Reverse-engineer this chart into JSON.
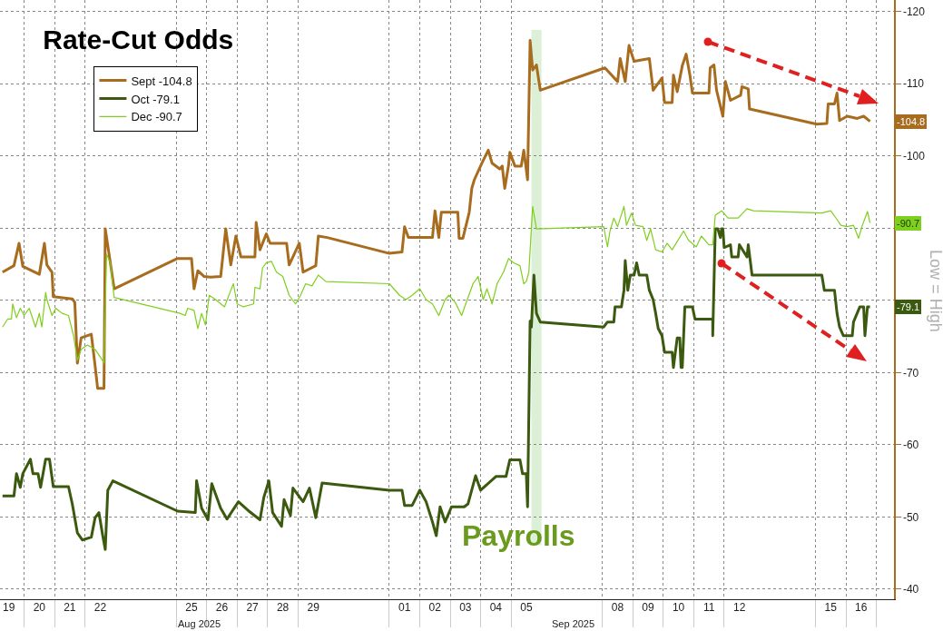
{
  "chart_data": {
    "type": "line",
    "title": "Rate-Cut Odds",
    "xlim": [
      "2025-08-19T05:00",
      "2025-09-17T13:55"
    ],
    "ylim": [
      -38.6,
      -121.6
    ],
    "xticks": [
      {
        "value": "2025-08-19T12:00",
        "label": "19"
      },
      {
        "value": "2025-08-20T00:00",
        "label": null
      },
      {
        "value": "2025-08-20T12:00",
        "label": "20"
      },
      {
        "value": "2025-08-21T00:00",
        "label": null
      },
      {
        "value": "2025-08-21T12:00",
        "label": "21"
      },
      {
        "value": "2025-08-22T00:00",
        "label": null
      },
      {
        "value": "2025-08-22T12:00",
        "label": "22"
      },
      {
        "value": "2025-08-25T00:00",
        "label": null
      },
      {
        "value": "2025-08-25T12:00",
        "label": "25"
      },
      {
        "value": "2025-08-26T00:00",
        "label": null
      },
      {
        "value": "2025-08-26T12:00",
        "label": "26"
      },
      {
        "value": "2025-08-27T00:00",
        "label": null
      },
      {
        "value": "2025-08-27T12:00",
        "label": "27"
      },
      {
        "value": "2025-08-28T00:00",
        "label": null
      },
      {
        "value": "2025-08-28T12:00",
        "label": "28"
      },
      {
        "value": "2025-08-29T00:00",
        "label": null
      },
      {
        "value": "2025-08-29T12:00",
        "label": "29"
      },
      {
        "value": "2025-09-01T00:00",
        "label": null
      },
      {
        "value": "2025-09-01T12:00",
        "label": "01"
      },
      {
        "value": "2025-09-02T00:00",
        "label": null
      },
      {
        "value": "2025-09-02T12:00",
        "label": "02"
      },
      {
        "value": "2025-09-03T00:00",
        "label": null
      },
      {
        "value": "2025-09-03T12:00",
        "label": "03"
      },
      {
        "value": "2025-09-04T00:00",
        "label": null
      },
      {
        "value": "2025-09-04T12:00",
        "label": "04"
      },
      {
        "value": "2025-09-05T00:00",
        "label": null
      },
      {
        "value": "2025-09-05T12:00",
        "label": "05"
      },
      {
        "value": "2025-09-08T00:00",
        "label": null
      },
      {
        "value": "2025-09-08T12:00",
        "label": "08"
      },
      {
        "value": "2025-09-09T00:00",
        "label": null
      },
      {
        "value": "2025-09-09T12:00",
        "label": "09"
      },
      {
        "value": "2025-09-10T00:00",
        "label": null
      },
      {
        "value": "2025-09-10T12:00",
        "label": "10"
      },
      {
        "value": "2025-09-11T00:00",
        "label": null
      },
      {
        "value": "2025-09-11T12:00",
        "label": "11"
      },
      {
        "value": "2025-09-12T00:00",
        "label": null
      },
      {
        "value": "2025-09-12T12:00",
        "label": "12"
      },
      {
        "value": "2025-09-15T00:00",
        "label": null
      },
      {
        "value": "2025-09-15T12:00",
        "label": "15"
      },
      {
        "value": "2025-09-16T00:00",
        "label": null
      },
      {
        "value": "2025-09-16T12:00",
        "label": "16"
      },
      {
        "value": "2025-09-17T00:00",
        "label": null
      }
    ],
    "yticks": [
      -120,
      -110,
      -100,
      {
        "value": -90,
        "label": null
      },
      {
        "value": -80,
        "label": null
      },
      -70,
      -60,
      -50,
      -40
    ],
    "grid": true,
    "legend": "top left",
    "bands": [
      {
        "axis": "x",
        "from": "2025-09-05T16:00",
        "to": "2025-09-06T00:00",
        "label": "Payrolls",
        "color": "#dcf0d8"
      }
    ],
    "annotations": [
      "Aug 2025",
      "Sep 2025",
      "Low = High",
      "-104.8",
      "-90.7",
      "-79.1"
    ],
    "series": [
      {
        "name": "Sept -104.8",
        "color": "#a86c1e",
        "x": [
          "2025-08-19T07:00",
          "2025-08-19T16:00",
          "2025-08-19T20:00",
          "2025-08-19T23:00",
          "2025-08-20T12:00",
          "2025-08-20T16:00",
          "2025-08-20T18:00",
          "2025-08-20T22:00",
          "2025-08-20T23:00",
          "2025-08-21T14:00",
          "2025-08-21T16:00",
          "2025-08-21T18:00",
          "2025-08-21T21:00",
          "2025-08-22T05:00",
          "2025-08-22T08:00",
          "2025-08-22T10:00",
          "2025-08-22T15:00",
          "2025-08-22T16:00",
          "2025-08-22T19:00",
          "2025-08-22T23:00",
          "2025-08-25T01:00",
          "2025-08-25T12:00",
          "2025-08-25T14:00",
          "2025-08-25T17:00",
          "2025-08-25T22:00",
          "2025-08-26T03:00",
          "2025-08-26T11:00",
          "2025-08-26T15:00",
          "2025-08-26T19:00",
          "2025-08-26T23:00",
          "2025-08-27T03:00",
          "2025-08-27T14:00",
          "2025-08-27T15:00",
          "2025-08-27T18:00",
          "2025-08-27T23:00",
          "2025-08-28T02:00",
          "2025-08-28T15:00",
          "2025-08-28T17:00",
          "2025-08-29T01:00",
          "2025-08-29T04:00",
          "2025-08-29T14:00",
          "2025-08-29T16:00",
          "2025-08-29T23:00",
          "2025-09-01T00:00",
          "2025-09-01T10:00",
          "2025-09-01T12:00",
          "2025-09-01T15:00",
          "2025-09-02T10:00",
          "2025-09-02T12:00",
          "2025-09-02T15:00",
          "2025-09-02T17:00",
          "2025-09-03T06:00",
          "2025-09-03T07:00",
          "2025-09-03T10:00",
          "2025-09-03T15:00",
          "2025-09-03T17:00",
          "2025-09-03T19:00",
          "2025-09-04T01:00",
          "2025-09-04T06:00",
          "2025-09-04T09:00",
          "2025-09-04T15:00",
          "2025-09-04T17:00",
          "2025-09-04T19:00",
          "2025-09-04T22:00",
          "2025-09-04T23:00",
          "2025-09-05T03:00",
          "2025-09-05T08:00",
          "2025-09-05T10:00",
          "2025-09-05T13:00",
          "2025-09-05T15:00",
          "2025-09-05T17:00",
          "2025-09-05T20:00",
          "2025-09-05T23:00",
          "2025-09-08T02:00",
          "2025-09-08T12:00",
          "2025-09-08T14:00",
          "2025-09-08T18:00",
          "2025-09-08T21:00",
          "2025-09-09T01:00",
          "2025-09-09T13:00",
          "2025-09-09T16:00",
          "2025-09-09T23:00",
          "2025-09-10T01:00",
          "2025-09-10T07:00",
          "2025-09-10T08:00",
          "2025-09-10T11:00",
          "2025-09-10T15:00",
          "2025-09-10T18:00",
          "2025-09-10T21:00",
          "2025-09-10T23:00",
          "2025-09-11T12:00",
          "2025-09-11T13:00",
          "2025-09-11T16:00",
          "2025-09-11T18:00",
          "2025-09-11T23:00",
          "2025-09-12T01:00",
          "2025-09-12T05:00",
          "2025-09-12T13:00",
          "2025-09-12T14:00",
          "2025-09-12T19:00",
          "2025-09-12T20:00",
          "2025-09-15T01:00",
          "2025-09-15T09:00",
          "2025-09-15T10:00",
          "2025-09-15T15:00",
          "2025-09-15T17:00",
          "2025-09-15T19:00",
          "2025-09-16T01:00",
          "2025-09-16T09:00",
          "2025-09-16T14:00",
          "2025-09-16T19:00"
        ],
        "values": [
          -83.9,
          -84.8,
          -87.9,
          -84.7,
          -83.6,
          -87.9,
          -84.9,
          -83.9,
          -80.5,
          -80.2,
          -79.7,
          -71.3,
          -74.8,
          -75.3,
          -70.9,
          -67.8,
          -67.8,
          -89.9,
          -86.4,
          -81.6,
          -85.8,
          -85.8,
          -81.6,
          -84.1,
          -83.3,
          -83.2,
          -83.3,
          -89.9,
          -84.9,
          -88.9,
          -86,
          -86,
          -90.8,
          -87,
          -89.2,
          -87.9,
          -87.9,
          -84.9,
          -87.9,
          -83.9,
          -84.8,
          -88.9,
          -88.7,
          -86.5,
          -86.7,
          -90.2,
          -88.7,
          -88.7,
          -92.4,
          -88.7,
          -92.2,
          -92.2,
          -88.6,
          -88.6,
          -92.2,
          -95.5,
          -96.7,
          -99,
          -100.8,
          -99,
          -98.2,
          -98.6,
          -95.5,
          -98.7,
          -100.5,
          -98.6,
          -98.6,
          -100.8,
          -96.7,
          -116,
          -111.9,
          -112.6,
          -109.1,
          -112.2,
          -110.3,
          -113.5,
          -110.3,
          -115.3,
          -113.1,
          -113.5,
          -109.1,
          -110.8,
          -107.4,
          -107.4,
          -111.2,
          -108.9,
          -112.5,
          -114.1,
          -111.2,
          -108.7,
          -108.7,
          -112.2,
          -112.6,
          -109.1,
          -105.5,
          -110.3,
          -107.7,
          -108.4,
          -109.6,
          -109.3,
          -106.5,
          -104.4,
          -104.5,
          -107.2,
          -107.2,
          -108.7,
          -104.9,
          -105.5,
          -105.2,
          -105.5,
          -104.8
        ]
      },
      {
        "name": "Oct -79.1",
        "color": "#3b5a10",
        "x": [
          "2025-08-19T07:00",
          "2025-08-19T16:00",
          "2025-08-19T18:00",
          "2025-08-19T21:00",
          "2025-08-19T23:00",
          "2025-08-20T05:00",
          "2025-08-20T07:00",
          "2025-08-20T11:00",
          "2025-08-20T13:00",
          "2025-08-20T17:00",
          "2025-08-20T20:00",
          "2025-08-20T23:00",
          "2025-08-21T01:00",
          "2025-08-21T11:00",
          "2025-08-21T14:00",
          "2025-08-21T18:00",
          "2025-08-21T22:00",
          "2025-08-22T05:00",
          "2025-08-22T08:00",
          "2025-08-22T11:00",
          "2025-08-22T14:00",
          "2025-08-22T16:00",
          "2025-08-22T18:00",
          "2025-08-22T22:00",
          "2025-08-25T01:00",
          "2025-08-25T15:00",
          "2025-08-25T16:00",
          "2025-08-25T20:00",
          "2025-08-26T01:00",
          "2025-08-26T04:00",
          "2025-08-26T11:00",
          "2025-08-26T16:00",
          "2025-08-27T01:00",
          "2025-08-27T10:00",
          "2025-08-27T18:00",
          "2025-08-27T21:00",
          "2025-08-28T01:00",
          "2025-08-28T04:00",
          "2025-08-28T11:00",
          "2025-08-28T13:00",
          "2025-08-28T18:00",
          "2025-08-28T20:00",
          "2025-08-29T04:00",
          "2025-08-29T09:00",
          "2025-08-29T14:00",
          "2025-08-29T19:00",
          "2025-09-01T00:00",
          "2025-09-01T10:00",
          "2025-09-01T12:00",
          "2025-09-01T18:00",
          "2025-09-02T00:00",
          "2025-09-02T05:00",
          "2025-09-02T10:00",
          "2025-09-02T13:00",
          "2025-09-02T16:00",
          "2025-09-02T20:00",
          "2025-09-03T01:00",
          "2025-09-03T11:00",
          "2025-09-03T14:00",
          "2025-09-03T20:00",
          "2025-09-04T00:00",
          "2025-09-04T12:00",
          "2025-09-04T20:00",
          "2025-09-04T23:00",
          "2025-09-05T07:00",
          "2025-09-05T09:00",
          "2025-09-05T12:00",
          "2025-09-05T13:00",
          "2025-09-05T15:00",
          "2025-09-05T16:00",
          "2025-09-05T18:00",
          "2025-09-05T20:00",
          "2025-09-05T23:00",
          "2025-09-08T01:00",
          "2025-09-08T04:00",
          "2025-09-08T09:00",
          "2025-09-08T10:00",
          "2025-09-08T15:00",
          "2025-09-08T17:00",
          "2025-09-08T18:00",
          "2025-09-08T20:00",
          "2025-09-08T22:00",
          "2025-09-09T01:00",
          "2025-09-09T03:00",
          "2025-09-09T05:00",
          "2025-09-09T11:00",
          "2025-09-09T13:00",
          "2025-09-09T16:00",
          "2025-09-09T18:00",
          "2025-09-09T20:00",
          "2025-09-09T23:00",
          "2025-09-10T01:00",
          "2025-09-10T07:00",
          "2025-09-10T08:00",
          "2025-09-10T11:00",
          "2025-09-10T13:00",
          "2025-09-10T14:00",
          "2025-09-10T15:00",
          "2025-09-10T17:00",
          "2025-09-10T23:00",
          "2025-09-11T01:00",
          "2025-09-11T15:00",
          "2025-09-11T15:00",
          "2025-09-11T17:00",
          "2025-09-11T19:00",
          "2025-09-11T21:00",
          "2025-09-11T22:00",
          "2025-09-11T23:00",
          "2025-09-12T00:00",
          "2025-09-12T05:00",
          "2025-09-12T06:00",
          "2025-09-12T11:00",
          "2025-09-12T12:00",
          "2025-09-12T18:00",
          "2025-09-12T19:00",
          "2025-09-12T22:00",
          "2025-09-15T05:00",
          "2025-09-15T07:00",
          "2025-09-15T15:00",
          "2025-09-15T17:00",
          "2025-09-15T19:00",
          "2025-09-15T22:00",
          "2025-09-16T05:00",
          "2025-09-16T06:00",
          "2025-09-16T11:00",
          "2025-09-16T14:00",
          "2025-09-16T15:00",
          "2025-09-16T17:00",
          "2025-09-16T19:00"
        ],
        "values": [
          -52.9,
          -52.9,
          -56,
          -54.1,
          -56,
          -58,
          -56,
          -56,
          -54.1,
          -58,
          -58,
          -54.2,
          -54.2,
          -54.2,
          -51.8,
          -47.8,
          -46.8,
          -47.2,
          -49.9,
          -50.6,
          -47.4,
          -45.5,
          -53.7,
          -55,
          -50.8,
          -50.6,
          -55,
          -51.2,
          -49.6,
          -54.6,
          -51.2,
          -49.7,
          -52.1,
          -50.7,
          -49.6,
          -52.7,
          -55,
          -50.6,
          -48.7,
          -52.4,
          -50.2,
          -54,
          -52.1,
          -54,
          -49.9,
          -54.7,
          -53.7,
          -53.7,
          -51.6,
          -51.6,
          -53.7,
          -52.1,
          -49.3,
          -47.4,
          -51.4,
          -49.3,
          -51.4,
          -51.4,
          -51.8,
          -55.7,
          -53.7,
          -55.6,
          -55.6,
          -57.9,
          -57.9,
          -56,
          -56,
          -51.4,
          -77.1,
          -76.3,
          -83.5,
          -78.2,
          -77,
          -76.3,
          -77,
          -77,
          -79.1,
          -79.1,
          -81.4,
          -85.5,
          -81.4,
          -83.5,
          -83.5,
          -85.2,
          -83.5,
          -83.5,
          -81.4,
          -80.1,
          -78.2,
          -76.1,
          -75.1,
          -72.8,
          -72.8,
          -70.7,
          -74.8,
          -74.8,
          -70.7,
          -70.7,
          -79.1,
          -79.1,
          -77.4,
          -77.4,
          -75.1,
          -89.9,
          -89.9,
          -88.7,
          -89.9,
          -89.9,
          -87.3,
          -87.7,
          -86,
          -86,
          -87.7,
          -86,
          -87.7,
          -83.5,
          -83.5,
          -81.4,
          -81.4,
          -78.2,
          -76.3,
          -75.1,
          -75.1,
          -77,
          -79.1,
          -79.1,
          -75.1,
          -79.1,
          -79.1
        ]
      },
      {
        "name": "Dec -90.7",
        "color": "#7fcf1e",
        "x": [
          "2025-08-19T07:00",
          "2025-08-19T11:00",
          "2025-08-19T14:00",
          "2025-08-19T15:00",
          "2025-08-19T18:00",
          "2025-08-19T21:00",
          "2025-08-20T00:00",
          "2025-08-20T04:00",
          "2025-08-20T09:00",
          "2025-08-20T12:00",
          "2025-08-20T14:00",
          "2025-08-20T17:00",
          "2025-08-20T18:00",
          "2025-08-20T22:00",
          "2025-08-21T01:00",
          "2025-08-21T06:00",
          "2025-08-21T11:00",
          "2025-08-21T15:00",
          "2025-08-21T18:00",
          "2025-08-21T21:00",
          "2025-08-22T02:00",
          "2025-08-22T08:00",
          "2025-08-22T13:00",
          "2025-08-22T15:00",
          "2025-08-22T17:00",
          "2025-08-22T20:00",
          "2025-08-22T23:00",
          "2025-08-25T03:00",
          "2025-08-25T07:00",
          "2025-08-25T09:00",
          "2025-08-25T14:00",
          "2025-08-25T17:00",
          "2025-08-25T20:00",
          "2025-08-25T23:00",
          "2025-08-26T02:00",
          "2025-08-26T07:00",
          "2025-08-26T14:00",
          "2025-08-26T21:00",
          "2025-08-27T00:00",
          "2025-08-27T05:00",
          "2025-08-27T13:00",
          "2025-08-27T14:00",
          "2025-08-27T18:00",
          "2025-08-27T20:00",
          "2025-08-27T23:00",
          "2025-08-28T03:00",
          "2025-08-28T07:00",
          "2025-08-28T12:00",
          "2025-08-28T17:00",
          "2025-08-28T22:00",
          "2025-08-29T02:00",
          "2025-08-29T06:00",
          "2025-08-29T11:00",
          "2025-08-29T16:00",
          "2025-08-29T22:00",
          "2025-09-01T00:00",
          "2025-09-01T08:00",
          "2025-09-01T13:00",
          "2025-09-01T18:00",
          "2025-09-02T00:00",
          "2025-09-02T05:00",
          "2025-09-02T10:00",
          "2025-09-02T15:00",
          "2025-09-02T20:00",
          "2025-09-02T23:00",
          "2025-09-03T04:00",
          "2025-09-03T09:00",
          "2025-09-03T11:00",
          "2025-09-03T18:00",
          "2025-09-03T22:00",
          "2025-09-04T02:00",
          "2025-09-04T05:00",
          "2025-09-04T09:00",
          "2025-09-04T13:00",
          "2025-09-04T18:00",
          "2025-09-04T22:00",
          "2025-09-05T02:00",
          "2025-09-05T07:00",
          "2025-09-05T10:00",
          "2025-09-05T12:00",
          "2025-09-05T14:00",
          "2025-09-05T17:00",
          "2025-09-05T20:00",
          "2025-09-08T01:00",
          "2025-09-08T04:00",
          "2025-09-08T06:00",
          "2025-09-08T09:00",
          "2025-09-08T12:00",
          "2025-09-08T17:00",
          "2025-09-08T19:00",
          "2025-09-08T23:00",
          "2025-09-09T02:00",
          "2025-09-09T08:00",
          "2025-09-09T11:00",
          "2025-09-09T14:00",
          "2025-09-09T18:00",
          "2025-09-09T23:00",
          "2025-09-10T03:00",
          "2025-09-10T07:00",
          "2025-09-10T16:00",
          "2025-09-10T20:00",
          "2025-09-11T02:00",
          "2025-09-11T06:00",
          "2025-09-11T12:00",
          "2025-09-11T15:00",
          "2025-09-11T17:00",
          "2025-09-11T22:00",
          "2025-09-12T03:00",
          "2025-09-12T11:00",
          "2025-09-12T18:00",
          "2025-09-12T23:00",
          "2025-09-15T05:00",
          "2025-09-15T12:00",
          "2025-09-15T17:00",
          "2025-09-15T20:00",
          "2025-09-16T01:00",
          "2025-09-16T06:00",
          "2025-09-16T10:00",
          "2025-09-16T13:00",
          "2025-09-16T17:00",
          "2025-09-16T19:00"
        ],
        "values": [
          -76.3,
          -77.4,
          -77.4,
          -79.5,
          -77.6,
          -78.9,
          -77.9,
          -78.9,
          -76.3,
          -78.2,
          -76.3,
          -81.1,
          -80.1,
          -77.9,
          -78.9,
          -78.2,
          -77.9,
          -75.1,
          -71.7,
          -73.2,
          -73.8,
          -73.2,
          -71.9,
          -71.3,
          -86.4,
          -85.2,
          -80.4,
          -78.2,
          -77.9,
          -78.9,
          -78.6,
          -76.1,
          -78.2,
          -76.6,
          -80.7,
          -80.1,
          -79.1,
          -82.3,
          -79.5,
          -79.1,
          -79.5,
          -81.8,
          -81.6,
          -84.5,
          -85.2,
          -85.4,
          -83.9,
          -83.3,
          -80.7,
          -79.5,
          -80.7,
          -82.3,
          -82,
          -83.5,
          -82.6,
          -82.3,
          -80.7,
          -80.1,
          -80.7,
          -81.6,
          -80.1,
          -79.5,
          -77.9,
          -80.1,
          -80.7,
          -79.7,
          -77.9,
          -78.9,
          -82.3,
          -83.3,
          -80.1,
          -81.6,
          -79.5,
          -82.3,
          -83.9,
          -85.8,
          -85.2,
          -84.8,
          -82.3,
          -82.6,
          -83.9,
          -93,
          -89.9,
          -90.2,
          -87.4,
          -89.6,
          -91.4,
          -90.2,
          -93,
          -90.4,
          -92.1,
          -90.4,
          -90.2,
          -88.3,
          -89.9,
          -87,
          -86.7,
          -87.9,
          -87,
          -89.6,
          -88.3,
          -87.4,
          -88.9,
          -87.7,
          -87.7,
          -91.8,
          -92.4,
          -91.4,
          -91.4,
          -92.7,
          -92.4,
          -92.1,
          -92.4,
          -91.2,
          -90.4,
          -90.2,
          -90.4,
          -88.6,
          -90.4,
          -92.3,
          -90.7
        ]
      }
    ]
  }
}
